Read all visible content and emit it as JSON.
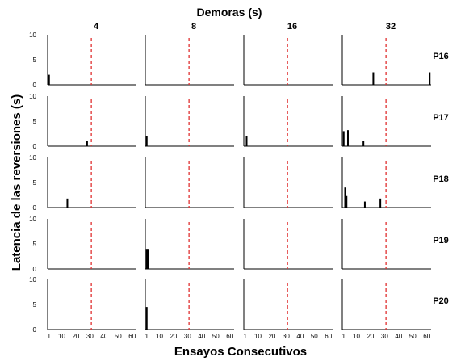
{
  "chart_data": {
    "type": "bar",
    "title": "Demoras (s)",
    "xlabel": "Ensayos Consecutivos",
    "ylabel": "Latencia de las reversiones (s)",
    "columns": [
      "4",
      "8",
      "16",
      "32"
    ],
    "rows": [
      "P16",
      "P17",
      "P18",
      "P19",
      "P20"
    ],
    "xlim": [
      0,
      63
    ],
    "xticks": [
      "1",
      "10",
      "20",
      "30",
      "40",
      "50",
      "60"
    ],
    "ylim": [
      0,
      10
    ],
    "yticks": [
      "0",
      "5",
      "10"
    ],
    "threshold_x": 31,
    "threshold_color": "#e03030",
    "bar_color": "#000000",
    "panels": [
      {
        "row": "P16",
        "column": "4",
        "bars": [
          {
            "x": 1,
            "y": 2
          }
        ]
      },
      {
        "row": "P16",
        "column": "8",
        "bars": []
      },
      {
        "row": "P16",
        "column": "16",
        "bars": []
      },
      {
        "row": "P16",
        "column": "32",
        "bars": [
          {
            "x": 22,
            "y": 2.5
          },
          {
            "x": 62,
            "y": 2.5
          }
        ]
      },
      {
        "row": "P17",
        "column": "4",
        "bars": [
          {
            "x": 28,
            "y": 1
          }
        ]
      },
      {
        "row": "P17",
        "column": "8",
        "bars": [
          {
            "x": 1,
            "y": 2
          }
        ]
      },
      {
        "row": "P17",
        "column": "16",
        "bars": [
          {
            "x": 2,
            "y": 2
          }
        ]
      },
      {
        "row": "P17",
        "column": "32",
        "bars": [
          {
            "x": 1,
            "y": 3
          },
          {
            "x": 4,
            "y": 3.2
          },
          {
            "x": 15,
            "y": 1
          }
        ]
      },
      {
        "row": "P18",
        "column": "4",
        "bars": [
          {
            "x": 14,
            "y": 1.8
          }
        ]
      },
      {
        "row": "P18",
        "column": "8",
        "bars": []
      },
      {
        "row": "P18",
        "column": "16",
        "bars": []
      },
      {
        "row": "P18",
        "column": "32",
        "bars": [
          {
            "x": 2,
            "y": 4
          },
          {
            "x": 3,
            "y": 2.3
          },
          {
            "x": 16,
            "y": 1.2
          },
          {
            "x": 27,
            "y": 1.8
          }
        ]
      },
      {
        "row": "P19",
        "column": "4",
        "bars": []
      },
      {
        "row": "P19",
        "column": "8",
        "bars": [
          {
            "x": 1,
            "y": 4
          },
          {
            "x": 2,
            "y": 4
          }
        ]
      },
      {
        "row": "P19",
        "column": "16",
        "bars": []
      },
      {
        "row": "P19",
        "column": "32",
        "bars": []
      },
      {
        "row": "P20",
        "column": "4",
        "bars": []
      },
      {
        "row": "P20",
        "column": "8",
        "bars": [
          {
            "x": 1,
            "y": 4.5
          }
        ]
      },
      {
        "row": "P20",
        "column": "16",
        "bars": []
      },
      {
        "row": "P20",
        "column": "32",
        "bars": []
      }
    ]
  }
}
